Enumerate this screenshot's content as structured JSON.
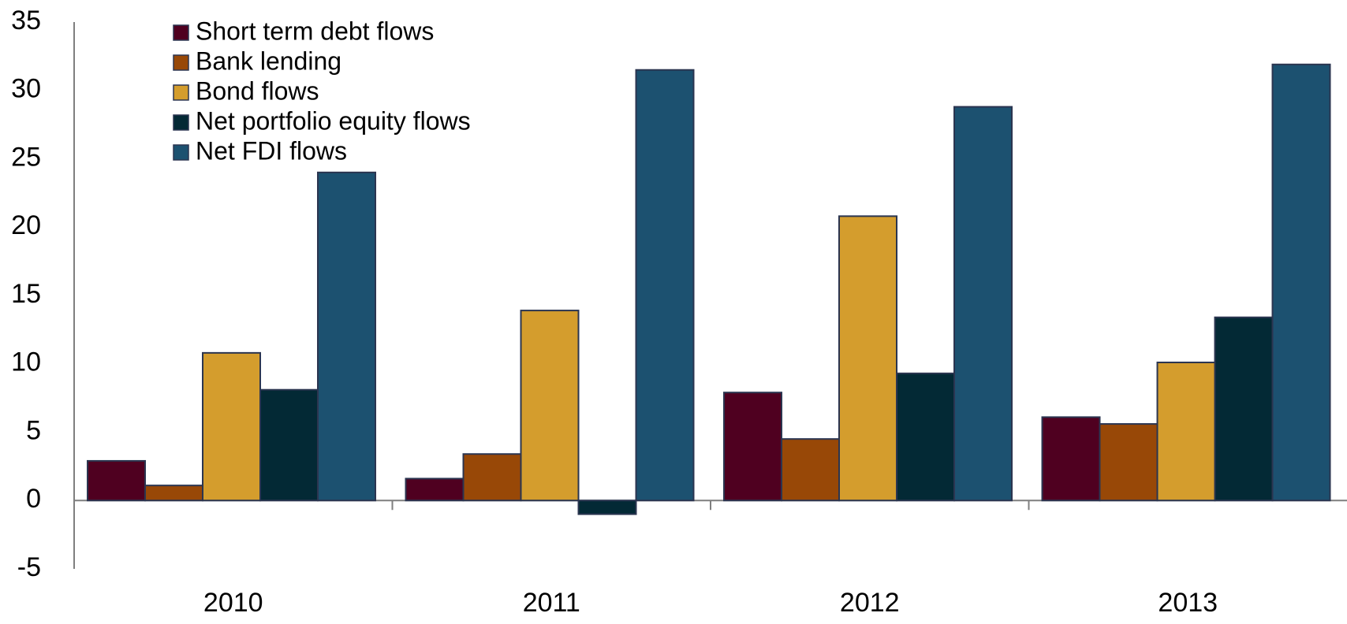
{
  "chart_data": {
    "type": "bar",
    "categories": [
      "2010",
      "2011",
      "2012",
      "2013"
    ],
    "series": [
      {
        "name": "Short term debt flows",
        "color": "#4f0020",
        "values": [
          2.9,
          1.6,
          7.9,
          6.1
        ]
      },
      {
        "name": "Bank lending",
        "color": "#984807",
        "values": [
          1.1,
          3.4,
          4.5,
          5.6
        ]
      },
      {
        "name": "Bond flows",
        "color": "#d49d2d",
        "values": [
          10.8,
          13.9,
          20.8,
          10.1
        ]
      },
      {
        "name": "Net portfolio equity flows",
        "color": "#032935",
        "values": [
          8.1,
          -1.0,
          9.3,
          13.4
        ]
      },
      {
        "name": "Net FDI flows",
        "color": "#1c5170",
        "values": [
          24.0,
          31.5,
          28.8,
          31.9
        ]
      }
    ],
    "ylim": [
      -5,
      35
    ],
    "yticks": [
      "35",
      "30",
      "25",
      "20",
      "15",
      "10",
      "5",
      "0",
      "-5"
    ],
    "ytick_values": [
      35,
      30,
      25,
      20,
      15,
      10,
      5,
      0,
      -5
    ],
    "legend_position": "top-left",
    "grid": false,
    "bar_outline_color": "#2b3550"
  }
}
